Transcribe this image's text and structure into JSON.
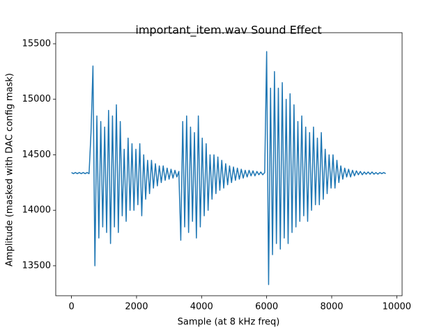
{
  "chart_data": {
    "type": "line",
    "title": "important_item.wav Sound Effect",
    "x_label": "Sample (at 8 kHz freq)",
    "y_label": "Amplitude (masked with DAC config mask)",
    "xlim": [
      -484,
      10164
    ],
    "ylim": [
      13230,
      15600
    ],
    "xticks": [
      0,
      2000,
      4000,
      6000,
      8000,
      10000
    ],
    "yticks": [
      13500,
      14000,
      14500,
      15000,
      15500
    ],
    "series": [
      {
        "color": "#1f77b4",
        "x": [
          0,
          60,
          120,
          180,
          240,
          300,
          360,
          420,
          480,
          540,
          600,
          660,
          720,
          780,
          840,
          900,
          960,
          1020,
          1080,
          1140,
          1200,
          1260,
          1320,
          1380,
          1440,
          1500,
          1560,
          1620,
          1680,
          1740,
          1800,
          1860,
          1920,
          1980,
          2040,
          2100,
          2160,
          2220,
          2280,
          2340,
          2400,
          2460,
          2520,
          2580,
          2640,
          2700,
          2760,
          2820,
          2880,
          2940,
          3000,
          3060,
          3120,
          3180,
          3240,
          3300,
          3360,
          3420,
          3480,
          3540,
          3600,
          3660,
          3720,
          3780,
          3840,
          3900,
          3960,
          4020,
          4080,
          4140,
          4200,
          4260,
          4320,
          4380,
          4440,
          4500,
          4560,
          4620,
          4680,
          4740,
          4800,
          4860,
          4920,
          4980,
          5040,
          5100,
          5160,
          5220,
          5280,
          5340,
          5400,
          5460,
          5520,
          5580,
          5640,
          5700,
          5760,
          5820,
          5880,
          5940,
          6000,
          6060,
          6120,
          6180,
          6240,
          6300,
          6360,
          6420,
          6480,
          6540,
          6600,
          6660,
          6720,
          6780,
          6840,
          6900,
          6960,
          7020,
          7080,
          7140,
          7200,
          7260,
          7320,
          7380,
          7440,
          7500,
          7560,
          7620,
          7680,
          7740,
          7800,
          7860,
          7920,
          7980,
          8040,
          8100,
          8160,
          8220,
          8280,
          8340,
          8400,
          8460,
          8520,
          8580,
          8640,
          8700,
          8760,
          8820,
          8880,
          8940,
          9000,
          9060,
          9120,
          9180,
          9240,
          9300,
          9360,
          9420,
          9480,
          9540,
          9600,
          9660
        ],
        "values": [
          14340,
          14330,
          14340,
          14330,
          14340,
          14330,
          14340,
          14330,
          14340,
          14330,
          14700,
          15300,
          13500,
          14850,
          13750,
          14800,
          13850,
          14750,
          13800,
          14900,
          13700,
          14850,
          13850,
          14950,
          13800,
          14800,
          13950,
          14550,
          13900,
          14650,
          14000,
          14600,
          14000,
          14550,
          14050,
          14600,
          13950,
          14500,
          14100,
          14450,
          14150,
          14450,
          14200,
          14420,
          14220,
          14400,
          14250,
          14400,
          14270,
          14380,
          14280,
          14370,
          14290,
          14360,
          14300,
          14350,
          13730,
          14800,
          13850,
          14850,
          13800,
          14750,
          13900,
          14700,
          13750,
          14850,
          13850,
          14650,
          13950,
          14600,
          14000,
          14500,
          14100,
          14500,
          14150,
          14480,
          14180,
          14450,
          14200,
          14420,
          14230,
          14400,
          14250,
          14390,
          14270,
          14380,
          14280,
          14370,
          14290,
          14360,
          14300,
          14360,
          14310,
          14355,
          14310,
          14350,
          14320,
          14345,
          14320,
          14340,
          15430,
          13330,
          15100,
          13600,
          15250,
          13700,
          15100,
          13650,
          15150,
          13750,
          15000,
          13700,
          15050,
          13800,
          14950,
          13850,
          14800,
          13900,
          14850,
          13950,
          14750,
          13900,
          14700,
          14000,
          14750,
          14050,
          14650,
          14050,
          14700,
          14100,
          14550,
          14150,
          14500,
          14200,
          14500,
          14200,
          14450,
          14250,
          14400,
          14280,
          14380,
          14300,
          14370,
          14300,
          14360,
          14310,
          14355,
          14320,
          14350,
          14320,
          14345,
          14325,
          14345,
          14325,
          14345,
          14325,
          14340,
          14325,
          14340,
          14330,
          14340,
          14330
        ]
      }
    ]
  }
}
